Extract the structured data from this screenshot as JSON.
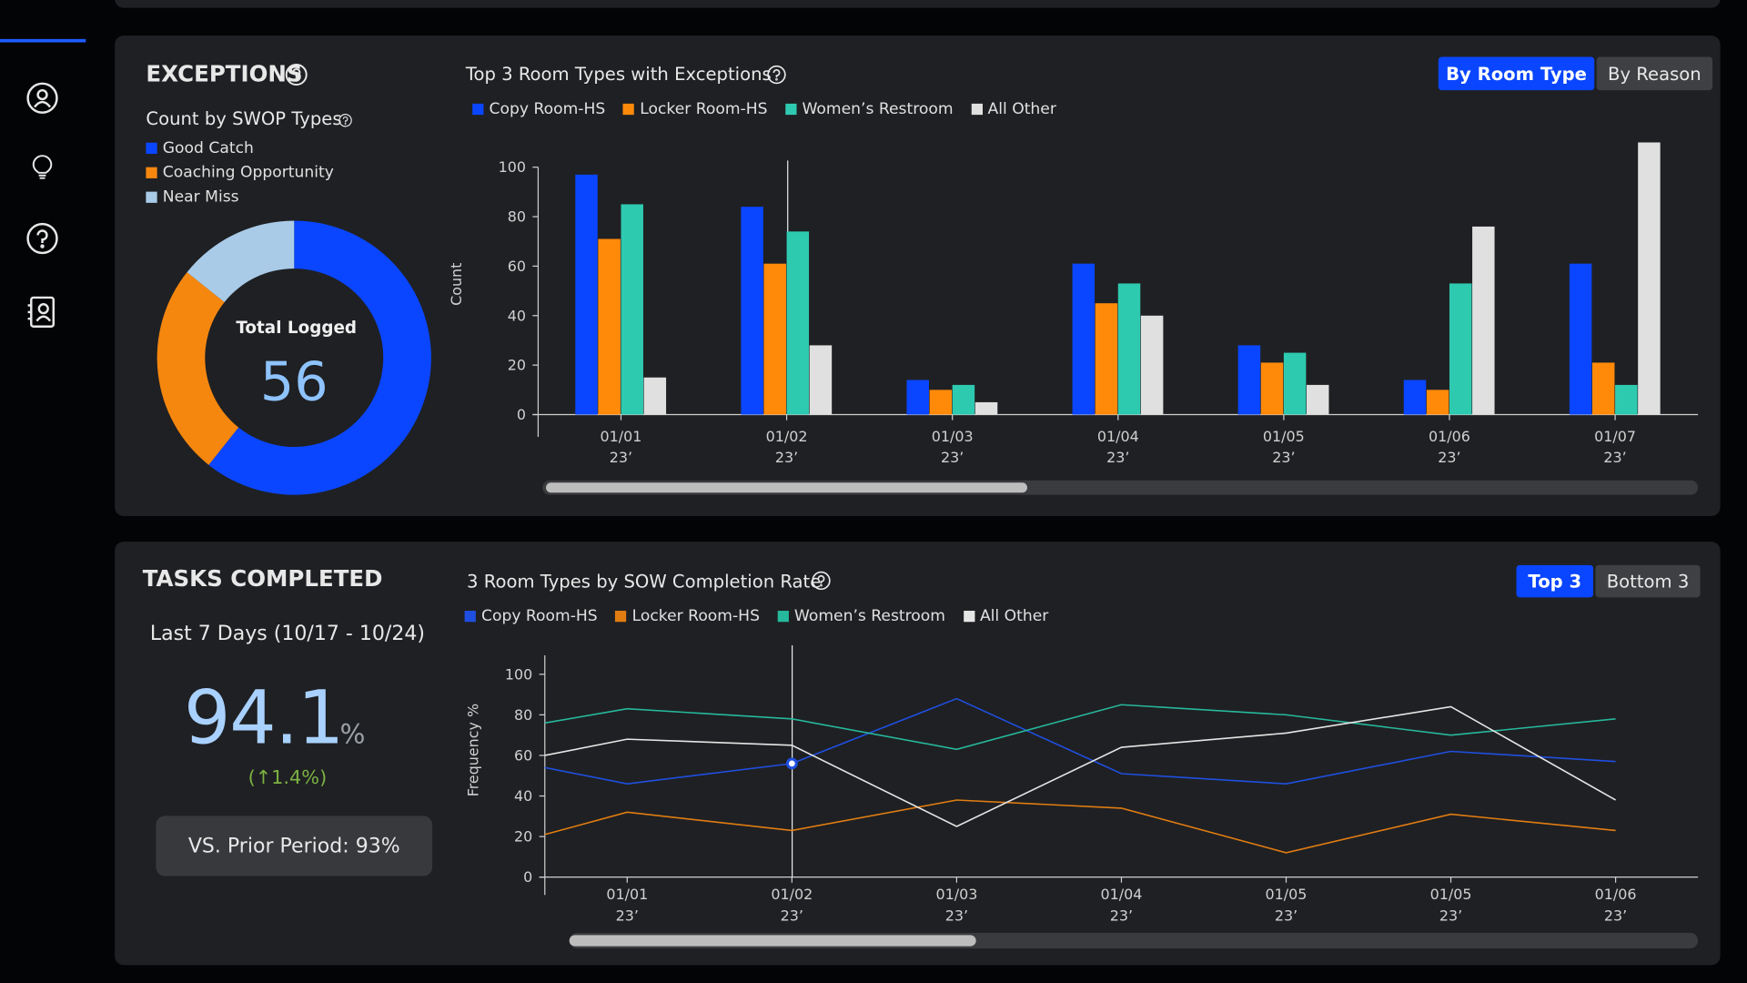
{
  "exceptions": {
    "title": "EXCEPTIONS",
    "toggle": [
      "By Room Type",
      "By Reason"
    ]
  },
  "tasks": {
    "title": "TASKS COMPLETED",
    "period": "Last 7 Days (10/17 - 10/24)",
    "rate": 94.1,
    "rate_unit": "%",
    "change": "(↑1.4%)",
    "prior": "VS. Prior Period: 93%",
    "toggle": [
      "Top 3",
      "Bottom 3"
    ]
  },
  "chart_data": [
    {
      "type": "pie",
      "donut": true,
      "title": "Count by SWOP Types",
      "center_label": "Total Logged",
      "center_value": 56,
      "categories": [
        "Good Catch",
        "Coaching Opportunity",
        "Near Miss"
      ],
      "values": [
        34,
        14,
        8
      ],
      "colors": [
        "#0a46ff",
        "#f5870f",
        "#a9cbe8"
      ]
    },
    {
      "type": "bar",
      "title": "Top 3 Room Types with Exceptions",
      "y_label": "Count",
      "categories": [
        "01/01\n23’",
        "01/02\n23’",
        "01/03\n23’",
        "01/04\n23’",
        "01/05\n23’",
        "01/06\n23’",
        "01/07\n23’"
      ],
      "series": [
        {
          "name": "Copy Room-HS",
          "color": "#0a46ff",
          "values": [
            97,
            84,
            14,
            61,
            28,
            14,
            61
          ]
        },
        {
          "name": "Locker Room-HS",
          "color": "#ff8a0a",
          "values": [
            71,
            61,
            10,
            45,
            21,
            10,
            21
          ]
        },
        {
          "name": "Women’s Restroom",
          "color": "#2ecab0",
          "values": [
            85,
            74,
            12,
            53,
            25,
            53,
            12
          ]
        },
        {
          "name": "All Other",
          "color": "#e0e0e0",
          "values": [
            15,
            28,
            5,
            40,
            12,
            76,
            110
          ]
        }
      ],
      "ylim": [
        0,
        110
      ],
      "yticks": [
        0,
        20,
        40,
        60,
        80,
        100
      ]
    },
    {
      "type": "line",
      "title": "3 Room Types by SOW Completion Rate",
      "y_label": "Frequency %",
      "categories": [
        null,
        "01/01\n23’",
        "01/02\n23’",
        "01/03\n23’",
        "01/04\n23’",
        "01/05\n23’",
        "01/05\n23’",
        "01/06\n23’"
      ],
      "series": [
        {
          "name": "Copy Room-HS",
          "color": "#1f4fe0",
          "values": [
            54,
            46,
            56,
            88,
            51,
            46,
            62,
            57
          ]
        },
        {
          "name": "Locker Room-HS",
          "color": "#e07d12",
          "values": [
            21,
            32,
            23,
            38,
            34,
            12,
            31,
            23
          ]
        },
        {
          "name": "Women’s Restroom",
          "color": "#26b89c",
          "values": [
            76,
            83,
            78,
            63,
            85,
            80,
            70,
            78
          ]
        },
        {
          "name": "All Other",
          "color": "#e6e6e6",
          "values": [
            60,
            68,
            65,
            25,
            64,
            71,
            84,
            38
          ]
        }
      ],
      "ylim": [
        0,
        110
      ],
      "yticks": [
        0,
        20,
        40,
        60,
        80,
        100
      ]
    }
  ]
}
